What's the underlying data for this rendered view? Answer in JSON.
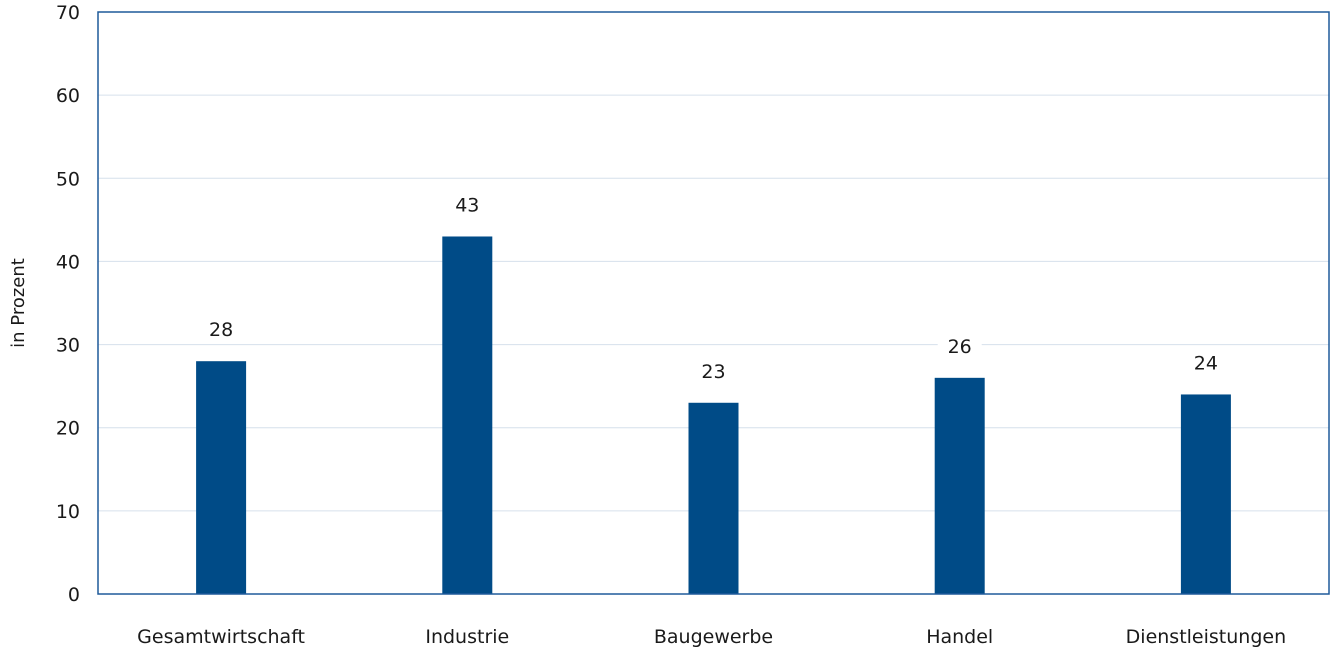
{
  "chart_data": {
    "type": "bar",
    "title": "",
    "xlabel": "",
    "ylabel": "in Prozent",
    "categories": [
      "Gesamtwirtschaft",
      "Industrie",
      "Baugewerbe",
      "Handel",
      "Dienstleistungen"
    ],
    "values": [
      28,
      43,
      23,
      26,
      24
    ],
    "ylim": [
      0,
      70
    ],
    "yticks": [
      "0",
      "10",
      "20",
      "30",
      "40",
      "50",
      "60",
      "70"
    ],
    "grid": true,
    "legend": "none",
    "colors": {
      "bar": "#004b87",
      "frame": "#1f5a9a",
      "grid": "#d6e0ec"
    }
  }
}
